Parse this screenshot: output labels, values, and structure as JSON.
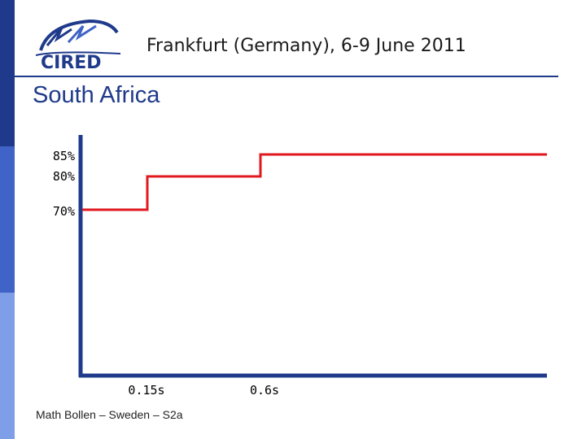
{
  "header": {
    "logo_text": "CIRED",
    "title": "Frankfurt (Germany), 6-9 June 2011"
  },
  "slide": {
    "title": "South Africa",
    "footer": "Math Bollen – Sweden – S2a"
  },
  "colors": {
    "band_dark": "#1f3a8a",
    "band_mid": "#3f63c6",
    "band_light": "#7f9ee8",
    "title": "#1f3a8a",
    "axis": "#1f3a8a",
    "curve": "#e0191f"
  },
  "chart_data": {
    "type": "line",
    "title": "",
    "xlabel": "",
    "ylabel": "",
    "y_tick_labels": [
      "85%",
      "80%",
      "70%"
    ],
    "x_tick_labels": [
      "0.15s",
      "0.6s"
    ],
    "series": [
      {
        "x": [
          0,
          0.15,
          0.15,
          0.6,
          0.6,
          1.8
        ],
        "y": [
          70,
          70,
          80,
          80,
          85,
          85
        ]
      }
    ],
    "grid": false
  }
}
